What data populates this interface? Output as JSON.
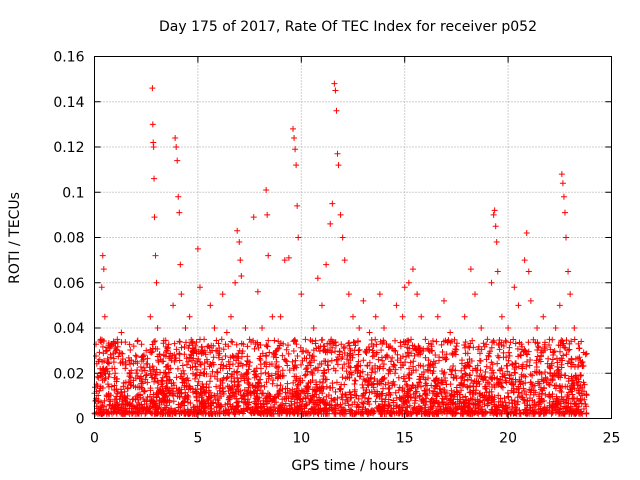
{
  "chart_data": {
    "type": "scatter",
    "title": "Day 175 of 2017, Rate Of TEC Index for receiver p052",
    "xlabel": "GPS time / hours",
    "ylabel": "ROTI / TECUs",
    "xlim": [
      0,
      25
    ],
    "ylim": [
      0,
      0.16
    ],
    "x_ticks": [
      0,
      5,
      10,
      15,
      20,
      25
    ],
    "y_ticks": [
      0,
      0.02,
      0.04,
      0.06,
      0.08,
      0.1,
      0.12,
      0.14,
      0.16
    ],
    "x_tick_labels": [
      "0",
      "5",
      "10",
      "15",
      "20",
      "25"
    ],
    "y_tick_labels": [
      "0",
      "0.02",
      "0.04",
      "0.06",
      "0.08",
      "0.1",
      "0.12",
      "0.14",
      "0.16"
    ],
    "grid": true,
    "marker": "+",
    "color": "#ff0000",
    "series": [
      {
        "points": [
          [
            0.1,
            0.012
          ],
          [
            0.2,
            0.018
          ],
          [
            0.3,
            0.035
          ],
          [
            0.35,
            0.058
          ],
          [
            0.4,
            0.072
          ],
          [
            0.45,
            0.066
          ],
          [
            0.5,
            0.045
          ],
          [
            0.55,
            0.03
          ],
          [
            0.6,
            0.022
          ],
          [
            0.7,
            0.014
          ],
          [
            0.8,
            0.027
          ],
          [
            0.9,
            0.033
          ],
          [
            1.0,
            0.02
          ],
          [
            1.1,
            0.011
          ],
          [
            1.3,
            0.038
          ],
          [
            1.5,
            0.025
          ],
          [
            1.7,
            0.016
          ],
          [
            1.9,
            0.032
          ],
          [
            2.1,
            0.014
          ],
          [
            2.3,
            0.021
          ],
          [
            2.5,
            0.03
          ],
          [
            2.7,
            0.045
          ],
          [
            2.8,
            0.146
          ],
          [
            2.82,
            0.13
          ],
          [
            2.84,
            0.122
          ],
          [
            2.86,
            0.12
          ],
          [
            2.88,
            0.106
          ],
          [
            2.9,
            0.089
          ],
          [
            2.95,
            0.072
          ],
          [
            3.0,
            0.06
          ],
          [
            3.05,
            0.04
          ],
          [
            3.1,
            0.025
          ],
          [
            3.3,
            0.018
          ],
          [
            3.5,
            0.03
          ],
          [
            3.8,
            0.05
          ],
          [
            3.9,
            0.124
          ],
          [
            3.95,
            0.12
          ],
          [
            4.0,
            0.114
          ],
          [
            4.05,
            0.098
          ],
          [
            4.1,
            0.091
          ],
          [
            4.15,
            0.068
          ],
          [
            4.2,
            0.055
          ],
          [
            4.4,
            0.04
          ],
          [
            4.6,
            0.045
          ],
          [
            4.8,
            0.03
          ],
          [
            5.0,
            0.075
          ],
          [
            5.1,
            0.058
          ],
          [
            5.3,
            0.035
          ],
          [
            5.6,
            0.05
          ],
          [
            5.8,
            0.04
          ],
          [
            6.0,
            0.028
          ],
          [
            6.2,
            0.055
          ],
          [
            6.4,
            0.038
          ],
          [
            6.6,
            0.045
          ],
          [
            6.8,
            0.06
          ],
          [
            6.9,
            0.083
          ],
          [
            7.0,
            0.078
          ],
          [
            7.05,
            0.07
          ],
          [
            7.1,
            0.063
          ],
          [
            7.3,
            0.04
          ],
          [
            7.5,
            0.035
          ],
          [
            7.7,
            0.089
          ],
          [
            7.9,
            0.056
          ],
          [
            8.1,
            0.04
          ],
          [
            8.3,
            0.101
          ],
          [
            8.35,
            0.09
          ],
          [
            8.4,
            0.072
          ],
          [
            8.6,
            0.045
          ],
          [
            8.8,
            0.03
          ],
          [
            9.0,
            0.045
          ],
          [
            9.2,
            0.07
          ],
          [
            9.4,
            0.071
          ],
          [
            9.6,
            0.128
          ],
          [
            9.65,
            0.124
          ],
          [
            9.7,
            0.119
          ],
          [
            9.75,
            0.112
          ],
          [
            9.8,
            0.094
          ],
          [
            9.85,
            0.08
          ],
          [
            10.0,
            0.055
          ],
          [
            10.2,
            0.035
          ],
          [
            10.4,
            0.028
          ],
          [
            10.6,
            0.04
          ],
          [
            10.8,
            0.062
          ],
          [
            11.0,
            0.05
          ],
          [
            11.2,
            0.068
          ],
          [
            11.4,
            0.086
          ],
          [
            11.5,
            0.095
          ],
          [
            11.6,
            0.148
          ],
          [
            11.65,
            0.145
          ],
          [
            11.7,
            0.136
          ],
          [
            11.75,
            0.117
          ],
          [
            11.8,
            0.112
          ],
          [
            11.9,
            0.09
          ],
          [
            12.0,
            0.08
          ],
          [
            12.1,
            0.07
          ],
          [
            12.3,
            0.055
          ],
          [
            12.5,
            0.045
          ],
          [
            12.8,
            0.04
          ],
          [
            13.0,
            0.052
          ],
          [
            13.3,
            0.038
          ],
          [
            13.6,
            0.045
          ],
          [
            13.8,
            0.055
          ],
          [
            14.0,
            0.04
          ],
          [
            14.3,
            0.032
          ],
          [
            14.6,
            0.05
          ],
          [
            14.9,
            0.045
          ],
          [
            15.0,
            0.058
          ],
          [
            15.2,
            0.06
          ],
          [
            15.4,
            0.066
          ],
          [
            15.6,
            0.055
          ],
          [
            15.8,
            0.045
          ],
          [
            16.0,
            0.035
          ],
          [
            16.3,
            0.03
          ],
          [
            16.6,
            0.045
          ],
          [
            16.9,
            0.052
          ],
          [
            17.2,
            0.038
          ],
          [
            17.5,
            0.032
          ],
          [
            17.9,
            0.045
          ],
          [
            18.2,
            0.066
          ],
          [
            18.4,
            0.055
          ],
          [
            18.7,
            0.04
          ],
          [
            19.0,
            0.035
          ],
          [
            19.2,
            0.06
          ],
          [
            19.3,
            0.09
          ],
          [
            19.35,
            0.092
          ],
          [
            19.4,
            0.085
          ],
          [
            19.45,
            0.078
          ],
          [
            19.5,
            0.065
          ],
          [
            19.7,
            0.045
          ],
          [
            20.0,
            0.04
          ],
          [
            20.3,
            0.058
          ],
          [
            20.5,
            0.05
          ],
          [
            20.8,
            0.07
          ],
          [
            20.9,
            0.082
          ],
          [
            21.0,
            0.065
          ],
          [
            21.1,
            0.052
          ],
          [
            21.4,
            0.04
          ],
          [
            21.7,
            0.045
          ],
          [
            22.0,
            0.035
          ],
          [
            22.3,
            0.04
          ],
          [
            22.5,
            0.05
          ],
          [
            22.6,
            0.108
          ],
          [
            22.65,
            0.104
          ],
          [
            22.7,
            0.098
          ],
          [
            22.75,
            0.091
          ],
          [
            22.8,
            0.08
          ],
          [
            22.9,
            0.065
          ],
          [
            23.0,
            0.055
          ],
          [
            23.2,
            0.04
          ],
          [
            23.4,
            0.033
          ],
          [
            23.6,
            0.025
          ],
          [
            23.7,
            0.015
          ]
        ]
      }
    ],
    "background_band": {
      "x_range": [
        0,
        23.8
      ],
      "y_min": 0.002,
      "y_max": 0.035,
      "density": 3200
    }
  }
}
